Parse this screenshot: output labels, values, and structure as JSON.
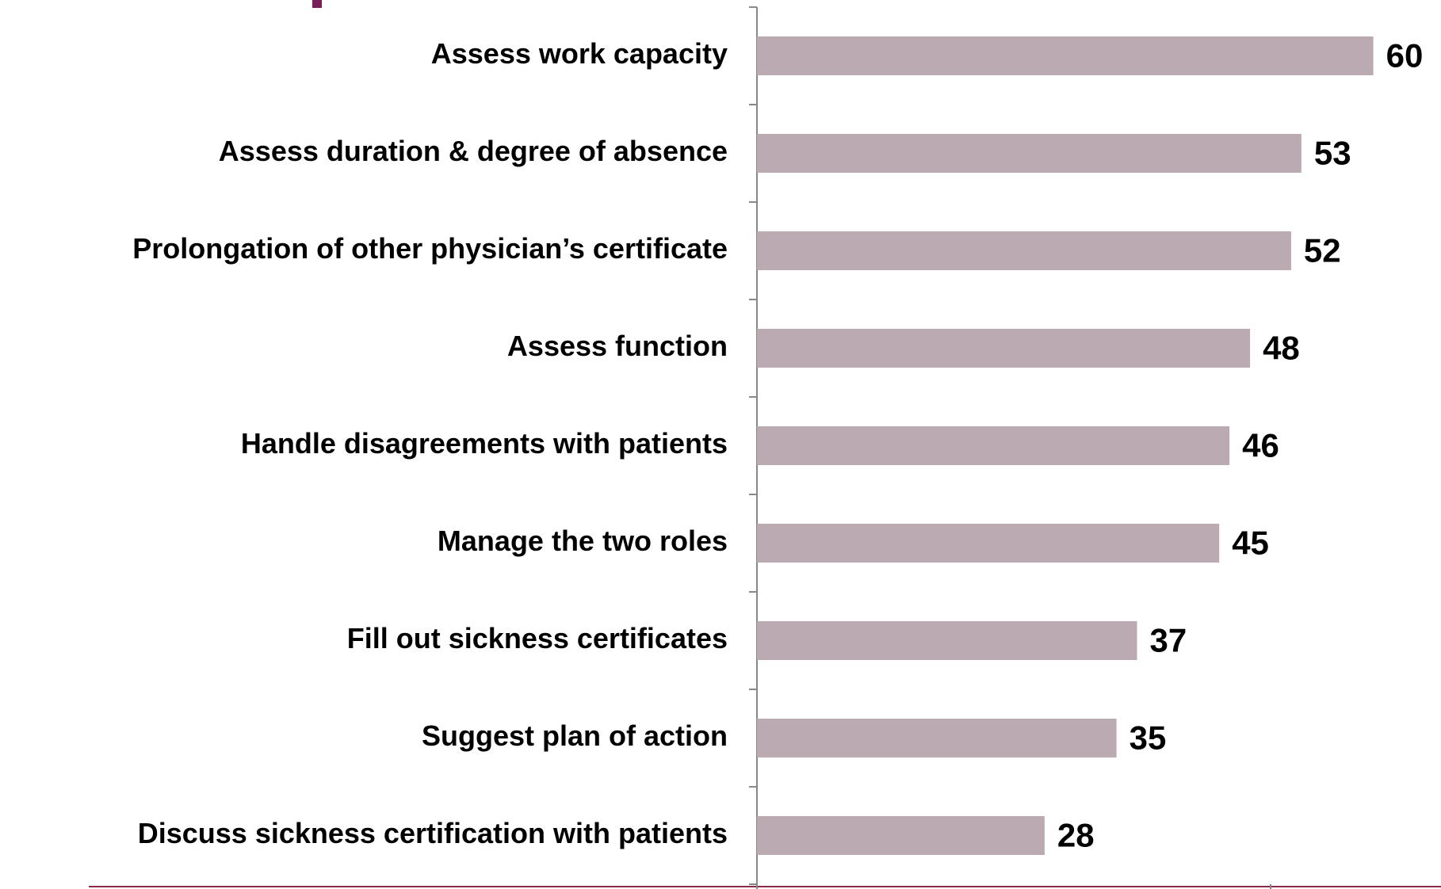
{
  "chart_data": {
    "type": "barh",
    "categories": [
      "Assess work capacity",
      "Assess duration & degree of absence",
      "Prolongation of other physician’s certificate",
      "Assess function",
      "Handle disagreements with patients",
      "Manage the two roles",
      "Fill out sickness certificates",
      "Suggest plan of action",
      "Discuss sickness certification with patients"
    ],
    "values": [
      60,
      53,
      52,
      48,
      46,
      45,
      37,
      35,
      28
    ],
    "color": "#bcaab2",
    "xlim": [
      0,
      66.5
    ],
    "xticks": [
      0,
      50
    ]
  }
}
